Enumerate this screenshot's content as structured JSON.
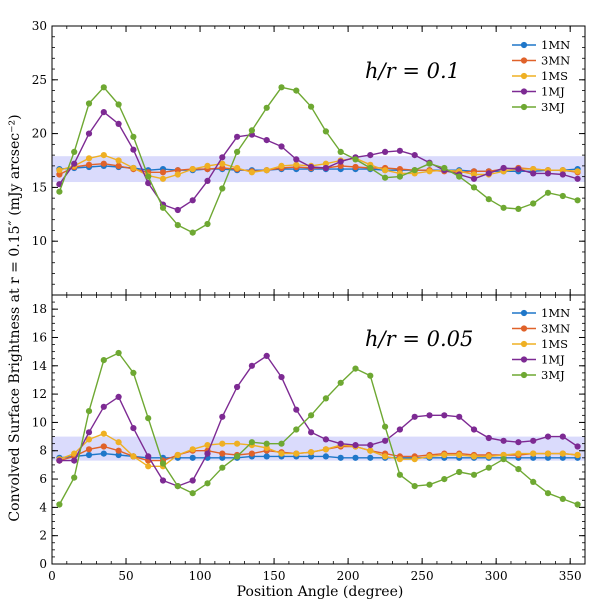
{
  "chart_data": [
    {
      "type": "line",
      "annotation": "h/r = 0.1",
      "ylabel": "Convolved Surface Brightness at r = 0.15″ (mJy arcsec⁻²)",
      "xlim": [
        0,
        360
      ],
      "ylim": [
        5,
        30
      ],
      "yticks": [
        "10",
        "15",
        "20",
        "25",
        "30"
      ],
      "band": [
        15.5,
        17.9
      ],
      "legend_position": "top-right",
      "x": [
        5,
        15,
        25,
        35,
        45,
        55,
        65,
        75,
        85,
        95,
        105,
        115,
        125,
        135,
        145,
        155,
        165,
        175,
        185,
        195,
        205,
        215,
        225,
        235,
        245,
        255,
        265,
        275,
        285,
        295,
        305,
        315,
        325,
        335,
        345,
        355
      ],
      "series": [
        {
          "name": "1MN",
          "color": "#1f77c9",
          "values": [
            16.7,
            16.8,
            16.9,
            17.0,
            16.9,
            16.8,
            16.6,
            16.7,
            16.6,
            16.6,
            16.7,
            16.7,
            16.6,
            16.6,
            16.6,
            16.7,
            16.7,
            16.7,
            16.7,
            16.7,
            16.7,
            16.7,
            16.6,
            16.6,
            16.6,
            16.6,
            16.6,
            16.6,
            16.5,
            16.5,
            16.5,
            16.5,
            16.5,
            16.6,
            16.6,
            16.7
          ]
        },
        {
          "name": "3MN",
          "color": "#e0622a",
          "values": [
            16.2,
            16.9,
            17.1,
            17.2,
            17.0,
            16.7,
            16.4,
            16.4,
            16.6,
            16.7,
            16.7,
            16.8,
            16.7,
            16.5,
            16.6,
            16.8,
            16.9,
            16.8,
            16.8,
            17.0,
            16.9,
            16.8,
            16.8,
            16.7,
            16.6,
            16.6,
            16.5,
            16.4,
            16.5,
            16.5,
            16.7,
            16.8,
            16.7,
            16.6,
            16.6,
            16.4
          ]
        },
        {
          "name": "1MS",
          "color": "#efb023",
          "values": [
            16.6,
            17.0,
            17.7,
            18.0,
            17.5,
            16.8,
            16.1,
            15.8,
            16.2,
            16.7,
            17.0,
            17.2,
            16.8,
            16.4,
            16.6,
            17.0,
            17.1,
            17.0,
            17.2,
            17.5,
            17.7,
            17.1,
            16.6,
            16.3,
            16.3,
            16.5,
            16.6,
            16.5,
            16.2,
            16.2,
            16.5,
            16.7,
            16.7,
            16.6,
            16.6,
            16.5
          ]
        },
        {
          "name": "1MJ",
          "color": "#7d2a93",
          "values": [
            15.3,
            17.2,
            20.0,
            22.0,
            20.9,
            18.5,
            15.4,
            13.4,
            12.9,
            13.8,
            15.6,
            17.8,
            19.7,
            19.9,
            19.4,
            18.8,
            17.6,
            16.9,
            16.8,
            17.4,
            17.8,
            18.0,
            18.3,
            18.4,
            18.0,
            17.3,
            16.6,
            16.2,
            15.8,
            16.3,
            16.8,
            16.7,
            16.3,
            16.3,
            16.2,
            15.8
          ]
        },
        {
          "name": "3MJ",
          "color": "#6ea832",
          "values": [
            14.6,
            18.3,
            22.8,
            24.3,
            22.7,
            19.7,
            16.0,
            13.1,
            11.5,
            10.8,
            11.6,
            14.9,
            18.3,
            20.3,
            22.4,
            24.3,
            24.0,
            22.5,
            20.2,
            18.3,
            17.6,
            16.8,
            15.9,
            16.0,
            16.6,
            17.2,
            16.8,
            16.0,
            15.0,
            13.9,
            13.1,
            13.0,
            13.5,
            14.5,
            14.2,
            13.8
          ]
        }
      ]
    },
    {
      "type": "line",
      "annotation": "h/r = 0.05",
      "xlabel": "Position Angle (degree)",
      "xlim": [
        0,
        360
      ],
      "xticks": [
        "0",
        "50",
        "100",
        "150",
        "200",
        "250",
        "300",
        "350"
      ],
      "ylim": [
        0,
        19
      ],
      "yticks": [
        "0",
        "2",
        "4",
        "6",
        "8",
        "10",
        "12",
        "14",
        "16",
        "18"
      ],
      "band": [
        7.3,
        9.0
      ],
      "legend_position": "top-right",
      "x": [
        5,
        15,
        25,
        35,
        45,
        55,
        65,
        75,
        85,
        95,
        105,
        115,
        125,
        135,
        145,
        155,
        165,
        175,
        185,
        195,
        205,
        215,
        225,
        235,
        245,
        255,
        265,
        275,
        285,
        295,
        305,
        315,
        325,
        335,
        345,
        355
      ],
      "series": [
        {
          "name": "1MN",
          "color": "#1f77c9",
          "values": [
            7.5,
            7.6,
            7.7,
            7.8,
            7.7,
            7.6,
            7.5,
            7.5,
            7.5,
            7.5,
            7.5,
            7.5,
            7.5,
            7.6,
            7.6,
            7.6,
            7.6,
            7.6,
            7.6,
            7.5,
            7.5,
            7.5,
            7.5,
            7.5,
            7.5,
            7.5,
            7.5,
            7.5,
            7.5,
            7.5,
            7.5,
            7.5,
            7.5,
            7.5,
            7.5,
            7.5
          ]
        },
        {
          "name": "3MN",
          "color": "#e0622a",
          "values": [
            7.3,
            7.6,
            8.1,
            8.3,
            8.0,
            7.6,
            7.3,
            7.3,
            7.7,
            8.0,
            8.0,
            7.8,
            7.7,
            7.8,
            8.0,
            7.9,
            7.8,
            7.9,
            8.1,
            8.3,
            8.3,
            8.0,
            7.8,
            7.6,
            7.6,
            7.7,
            7.8,
            7.8,
            7.7,
            7.7,
            7.7,
            7.7,
            7.8,
            7.8,
            7.8,
            7.7
          ]
        },
        {
          "name": "1MS",
          "color": "#efb023",
          "values": [
            7.4,
            7.8,
            8.8,
            9.2,
            8.6,
            7.6,
            6.9,
            6.9,
            7.7,
            8.1,
            8.4,
            8.5,
            8.5,
            8.4,
            8.2,
            7.8,
            7.8,
            7.9,
            8.1,
            8.4,
            8.3,
            8.0,
            7.6,
            7.4,
            7.4,
            7.6,
            7.7,
            7.7,
            7.6,
            7.6,
            7.7,
            7.8,
            7.8,
            7.8,
            7.8,
            7.7
          ]
        },
        {
          "name": "1MJ",
          "color": "#7d2a93",
          "values": [
            7.3,
            7.3,
            9.3,
            11.1,
            11.8,
            9.6,
            7.6,
            5.9,
            5.5,
            5.9,
            7.8,
            10.4,
            12.5,
            14.0,
            14.7,
            13.2,
            10.9,
            9.3,
            8.8,
            8.5,
            8.4,
            8.4,
            8.7,
            9.5,
            10.4,
            10.5,
            10.5,
            10.4,
            9.5,
            8.9,
            8.7,
            8.6,
            8.7,
            9.0,
            9.0,
            8.3
          ]
        },
        {
          "name": "3MJ",
          "color": "#6ea832",
          "values": [
            4.2,
            6.1,
            10.8,
            14.4,
            14.9,
            13.5,
            10.3,
            7.1,
            5.5,
            5.0,
            5.7,
            6.8,
            7.6,
            8.6,
            8.5,
            8.5,
            9.5,
            10.5,
            11.7,
            12.8,
            13.8,
            13.3,
            9.7,
            6.3,
            5.5,
            5.6,
            6.0,
            6.5,
            6.3,
            6.8,
            7.4,
            6.7,
            5.8,
            5.0,
            4.6,
            4.2
          ]
        }
      ]
    }
  ]
}
